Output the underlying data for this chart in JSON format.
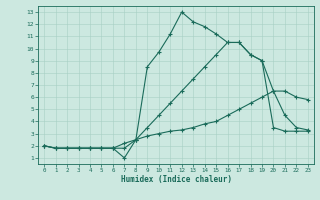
{
  "xlabel": "Humidex (Indice chaleur)",
  "bg_color": "#cce8e0",
  "line_color": "#1a6b5a",
  "grid_color": "#a8cfc4",
  "xlim": [
    -0.5,
    23.5
  ],
  "ylim": [
    0.5,
    13.5
  ],
  "xticks": [
    0,
    1,
    2,
    3,
    4,
    5,
    6,
    7,
    8,
    9,
    10,
    11,
    12,
    13,
    14,
    15,
    16,
    17,
    18,
    19,
    20,
    21,
    22,
    23
  ],
  "yticks": [
    1,
    2,
    3,
    4,
    5,
    6,
    7,
    8,
    9,
    10,
    11,
    12,
    13
  ],
  "line1_x": [
    0,
    1,
    2,
    3,
    4,
    5,
    6,
    7,
    8,
    9,
    10,
    11,
    12,
    13,
    14,
    15,
    16,
    17,
    18,
    19,
    20,
    21,
    22,
    23
  ],
  "line1_y": [
    2,
    1.8,
    1.8,
    1.8,
    1.8,
    1.8,
    1.8,
    1.8,
    2.5,
    3.5,
    4.5,
    5.5,
    6.5,
    7.5,
    8.5,
    9.5,
    10.5,
    10.5,
    9.5,
    9.0,
    6.5,
    4.5,
    3.5,
    3.3
  ],
  "line2_x": [
    0,
    1,
    2,
    3,
    4,
    5,
    6,
    7,
    8,
    9,
    10,
    11,
    12,
    13,
    14,
    15,
    16,
    17,
    18,
    19,
    20,
    21,
    22,
    23
  ],
  "line2_y": [
    2,
    1.8,
    1.8,
    1.8,
    1.8,
    1.8,
    1.8,
    1.0,
    2.5,
    8.5,
    9.7,
    11.2,
    13.0,
    12.2,
    11.8,
    11.2,
    10.5,
    10.5,
    9.5,
    9.0,
    3.5,
    3.2,
    3.2,
    3.2
  ],
  "line3_x": [
    0,
    1,
    2,
    3,
    4,
    5,
    6,
    7,
    8,
    9,
    10,
    11,
    12,
    13,
    14,
    15,
    16,
    17,
    18,
    19,
    20,
    21,
    22,
    23
  ],
  "line3_y": [
    2,
    1.8,
    1.8,
    1.8,
    1.8,
    1.8,
    1.8,
    2.2,
    2.5,
    2.8,
    3.0,
    3.2,
    3.3,
    3.5,
    3.8,
    4.0,
    4.5,
    5.0,
    5.5,
    6.0,
    6.5,
    6.5,
    6.0,
    5.8
  ]
}
